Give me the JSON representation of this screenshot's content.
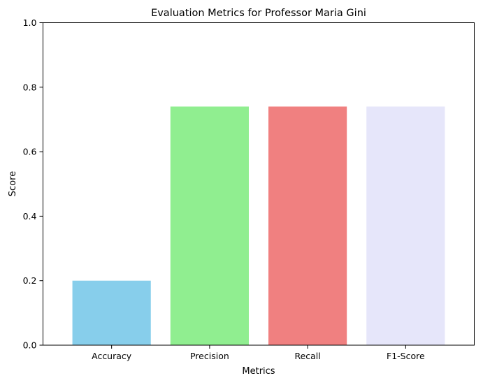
{
  "chart_data": {
    "type": "bar",
    "title": "Evaluation Metrics for Professor Maria Gini",
    "xlabel": "Metrics",
    "ylabel": "Score",
    "categories": [
      "Accuracy",
      "Precision",
      "Recall",
      "F1-Score"
    ],
    "values": [
      0.2,
      0.74,
      0.74,
      0.74
    ],
    "colors": [
      "#87ceeb",
      "#90ee90",
      "#f08080",
      "#e6e6fa"
    ],
    "ylim": [
      0,
      1.0
    ],
    "yticks": [
      "0.0",
      "0.2",
      "0.4",
      "0.6",
      "0.8",
      "1.0"
    ],
    "grid": false,
    "legend": "none"
  }
}
